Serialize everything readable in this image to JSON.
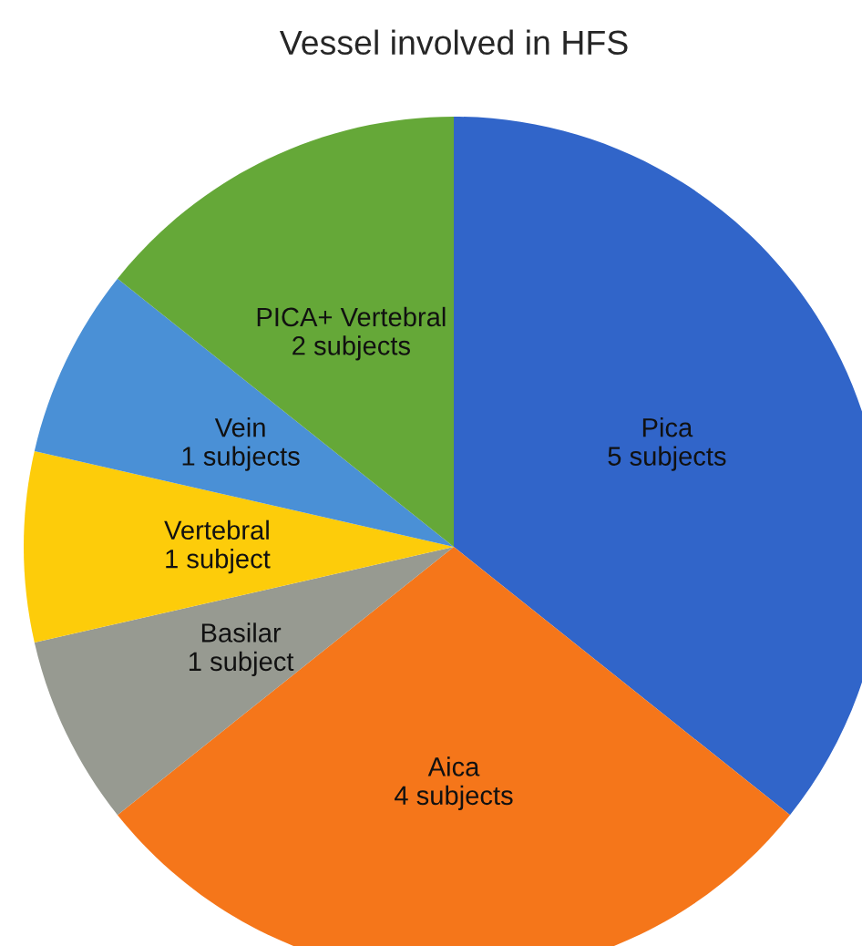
{
  "chart_data": {
    "type": "pie",
    "title": "Vessel involved in HFS",
    "categories": [
      "Pica",
      "Aica",
      "Basilar",
      "Vertebral",
      "Vein",
      "PICA+ Vertebral"
    ],
    "values": [
      5,
      4,
      1,
      1,
      1,
      2
    ],
    "value_labels": [
      "5 subjects",
      "4 subjects",
      "1 subject",
      "1 subject",
      "1 subjects",
      "2 subjects"
    ],
    "colors": [
      "#3165c9",
      "#f5761a",
      "#979a91",
      "#fdcc0a",
      "#4a90d6",
      "#65a838"
    ]
  }
}
